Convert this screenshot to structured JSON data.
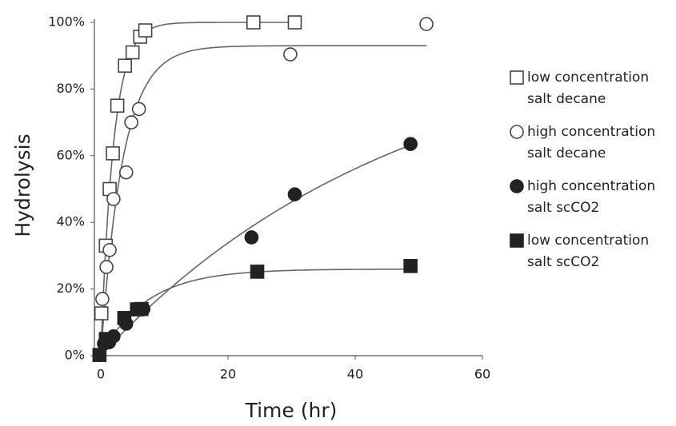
{
  "chart_data": {
    "type": "scatter",
    "x_label": "Time (hr)",
    "y_label": "Hydrolysis",
    "xlim": [
      -1,
      60
    ],
    "xticks": [
      0,
      20,
      40,
      60
    ],
    "ylim": [
      0,
      100
    ],
    "yticks": [
      {
        "value": 0,
        "label": "0%"
      },
      {
        "value": 20,
        "label": "20%"
      },
      {
        "value": 40,
        "label": "40%"
      },
      {
        "value": 60,
        "label": "60%"
      },
      {
        "value": 80,
        "label": "80%"
      },
      {
        "value": 100,
        "label": "100%"
      }
    ],
    "trendline": true,
    "series": [
      {
        "name": "low concentration salt decane",
        "color": "#444",
        "marker": "square",
        "filled": false,
        "x": [
          0.1,
          0.8,
          1.4,
          1.9,
          2.6,
          3.8,
          5,
          6.2,
          7,
          24,
          30.5
        ],
        "values": [
          12.7,
          33,
          50,
          60.7,
          75,
          87,
          91,
          95.7,
          97.6,
          100,
          100
        ]
      },
      {
        "name": "high concentration salt decane",
        "color": "#444",
        "marker": "circle",
        "filled": false,
        "x": [
          0.25,
          0.9,
          1.4,
          2,
          4,
          4.8,
          6,
          29.8,
          51.2
        ],
        "values": [
          17,
          26.6,
          31.7,
          47,
          55,
          70,
          74,
          90.4,
          99.5
        ]
      },
      {
        "name": "high concentration salt scCO2",
        "color": "#222",
        "marker": "circle",
        "filled": true,
        "x": [
          -0.2,
          0.5,
          1.3,
          2,
          4,
          6.7,
          23.7,
          30.5,
          48.7
        ],
        "values": [
          0.2,
          3.6,
          4,
          5.8,
          9.6,
          14,
          35.5,
          48.4,
          63.5
        ]
      },
      {
        "name": "low concentration salt scCO2",
        "color": "#222",
        "marker": "square",
        "filled": true,
        "x": [
          -0.2,
          0.8,
          3.7,
          5.7,
          6.4,
          24.6,
          48.7
        ],
        "values": [
          0.2,
          5,
          11.3,
          13.9,
          14,
          25.2,
          26.9
        ]
      }
    ]
  }
}
